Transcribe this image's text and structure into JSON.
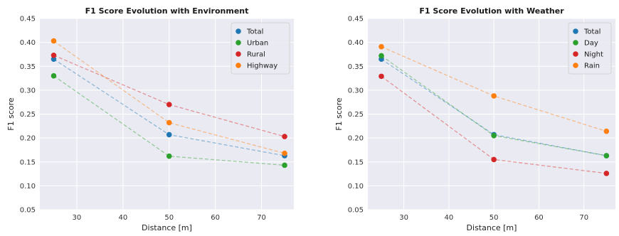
{
  "chart_data": [
    {
      "type": "line",
      "title": "F1 Score Evolution with Environment",
      "xlabel": "Distance [m]",
      "ylabel": "F1 score",
      "x": [
        25,
        50,
        75
      ],
      "xticks": [
        30,
        40,
        50,
        60,
        70
      ],
      "yticks": [
        0.05,
        0.1,
        0.15,
        0.2,
        0.25,
        0.3,
        0.35,
        0.4,
        0.45
      ],
      "xlim": [
        22,
        77
      ],
      "ylim": [
        0.05,
        0.45
      ],
      "grid": true,
      "legend_position": "top-right",
      "series": [
        {
          "name": "Total",
          "color": "#1f77b4",
          "values": [
            0.365,
            0.207,
            0.163
          ]
        },
        {
          "name": "Urban",
          "color": "#2ca02c",
          "values": [
            0.33,
            0.162,
            0.143
          ]
        },
        {
          "name": "Rural",
          "color": "#d62728",
          "values": [
            0.373,
            0.27,
            0.203
          ]
        },
        {
          "name": "Highway",
          "color": "#ff7f0e",
          "values": [
            0.403,
            0.232,
            0.168
          ]
        }
      ]
    },
    {
      "type": "line",
      "title": "F1 Score Evolution with Weather",
      "xlabel": "Distance [m]",
      "ylabel": "F1 score",
      "x": [
        25,
        50,
        75
      ],
      "xticks": [
        30,
        40,
        50,
        60,
        70
      ],
      "yticks": [
        0.05,
        0.1,
        0.15,
        0.2,
        0.25,
        0.3,
        0.35,
        0.4,
        0.45
      ],
      "xlim": [
        22,
        77
      ],
      "ylim": [
        0.05,
        0.45
      ],
      "grid": true,
      "legend_position": "top-right",
      "series": [
        {
          "name": "Total",
          "color": "#1f77b4",
          "values": [
            0.365,
            0.207,
            0.163
          ]
        },
        {
          "name": "Day",
          "color": "#2ca02c",
          "values": [
            0.372,
            0.205,
            0.163
          ]
        },
        {
          "name": "Night",
          "color": "#d62728",
          "values": [
            0.329,
            0.155,
            0.126
          ]
        },
        {
          "name": "Rain",
          "color": "#ff7f0e",
          "values": [
            0.391,
            0.288,
            0.214
          ]
        }
      ]
    }
  ]
}
